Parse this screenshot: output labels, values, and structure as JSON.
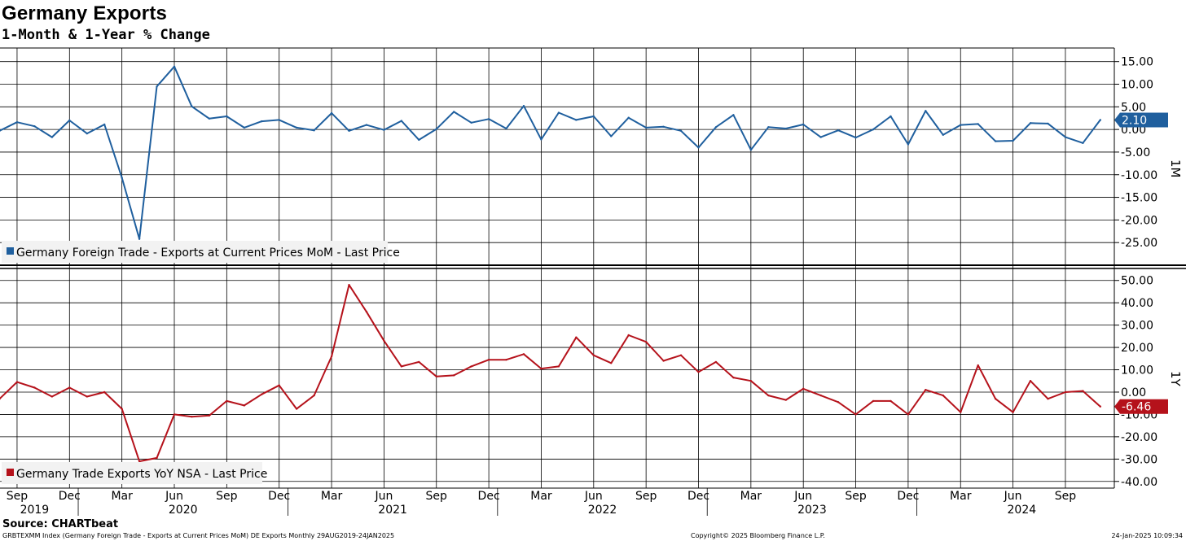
{
  "title": "Germany Exports",
  "subtitle": "1-Month & 1-Year % Change",
  "source": "Source: CHARTbeat",
  "footer": {
    "left": "GRBTEXMM Index (Germany Foreign Trade - Exports at Current Prices MoM) DE Exports  Monthly 29AUG2019-24JAN2025",
    "center": "Copyright© 2025 Bloomberg Finance L.P.",
    "right": "24-Jan-2025 10:09:34"
  },
  "colors": {
    "mom": "#1f5f9e",
    "yoy": "#b5121b"
  },
  "chart_data": [
    {
      "type": "line",
      "panel_label": "1M",
      "legend": "Germany Foreign Trade - Exports at Current Prices MoM - Last Price",
      "last_value_label": "2.10",
      "ylim": [
        -30,
        18
      ],
      "yticks": [
        15,
        10,
        5,
        0,
        -5,
        -10,
        -15,
        -20,
        -25
      ],
      "ytick_labels": [
        "15.00",
        "10.00",
        "5.00",
        "0.00",
        "-5.00",
        "-10.00",
        "-15.00",
        "-20.00",
        "-25.00"
      ],
      "x_start": "2019-08",
      "values": [
        -0.3,
        1.6,
        0.7,
        -1.7,
        2.0,
        -0.9,
        1.1,
        -10.7,
        -24.2,
        9.5,
        13.9,
        5.1,
        2.4,
        2.9,
        0.4,
        1.8,
        2.1,
        0.4,
        -0.2,
        3.6,
        -0.3,
        1.0,
        -0.1,
        1.9,
        -2.3,
        0.1,
        3.9,
        1.5,
        2.3,
        0.2,
        5.2,
        -2.2,
        3.7,
        2.1,
        2.9,
        -1.5,
        2.6,
        0.4,
        0.6,
        -0.3,
        -4.0,
        0.5,
        3.2,
        -4.5,
        0.5,
        0.2,
        1.1,
        -1.7,
        -0.2,
        -1.8,
        0.0,
        2.9,
        -3.3,
        4.1,
        -1.2,
        1.0,
        1.2,
        -2.6,
        -2.5,
        1.4,
        1.3,
        -1.7,
        -3.0,
        2.1
      ]
    },
    {
      "type": "line",
      "panel_label": "1Y",
      "legend": "Germany Trade Exports YoY NSA - Last Price",
      "last_value_label": "-6.46",
      "ylim": [
        -43,
        55
      ],
      "yticks": [
        50,
        40,
        30,
        20,
        10,
        0,
        -10,
        -20,
        -30,
        -40
      ],
      "ytick_labels": [
        "50.00",
        "40.00",
        "30.00",
        "20.00",
        "10.00",
        "0.00",
        "-10.00",
        "-20.00",
        "-30.00",
        "-40.00"
      ],
      "x_start": "2019-08",
      "values": [
        -3.0,
        4.5,
        2.0,
        -2.0,
        2.0,
        -2.0,
        0.0,
        -7.5,
        -31.0,
        -29.5,
        -10.0,
        -11.0,
        -10.5,
        -4.0,
        -6.0,
        -1.0,
        3.0,
        -7.5,
        -1.5,
        16.0,
        48.0,
        36.0,
        23.0,
        11.5,
        13.5,
        7.0,
        7.5,
        11.5,
        14.5,
        14.5,
        17.0,
        10.5,
        11.5,
        24.5,
        16.5,
        13.0,
        25.5,
        22.5,
        14.0,
        16.5,
        9.0,
        13.5,
        6.5,
        5.0,
        -1.5,
        -3.5,
        1.5,
        -1.5,
        -4.5,
        -10.0,
        -4.0,
        -4.0,
        -10.0,
        1.0,
        -1.5,
        -9.0,
        12.0,
        -3.0,
        -9.0,
        5.0,
        -3.0,
        0.0,
        0.5,
        -6.46
      ]
    }
  ],
  "x_axis": {
    "month_labels": [
      "Sep",
      "Dec",
      "Mar",
      "Jun",
      "Sep",
      "Dec",
      "Mar",
      "Jun",
      "Sep",
      "Dec",
      "Mar",
      "Jun",
      "Sep",
      "Dec",
      "Mar",
      "Jun",
      "Sep",
      "Dec",
      "Mar",
      "Jun",
      "Sep"
    ],
    "year_labels": [
      "2019",
      "2020",
      "2021",
      "2022",
      "2023",
      "2024"
    ]
  }
}
